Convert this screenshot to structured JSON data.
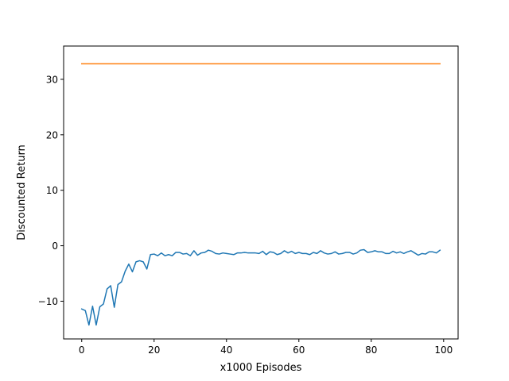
{
  "chart_data": {
    "type": "line",
    "title": "",
    "xlabel": "x1000 Episodes",
    "ylabel": "Discounted Return",
    "xlim": [
      -5,
      104
    ],
    "ylim": [
      -16.8,
      36.0
    ],
    "xticks": [
      0,
      20,
      40,
      60,
      80,
      100
    ],
    "yticks": [
      -10,
      0,
      10,
      20,
      30
    ],
    "tick_labels": {
      "x": [
        "0",
        "20",
        "40",
        "60",
        "80",
        "100"
      ],
      "y": [
        "−10",
        "0",
        "10",
        "20",
        "30"
      ]
    },
    "grid": false,
    "legend": "none",
    "series": [
      {
        "color": "#1f77b4",
        "x": [
          0,
          1,
          2,
          3,
          4,
          5,
          6,
          7,
          8,
          9,
          10,
          11,
          12,
          13,
          14,
          15,
          16,
          17,
          18,
          19,
          20,
          21,
          22,
          23,
          24,
          25,
          26,
          27,
          28,
          29,
          30,
          31,
          32,
          33,
          34,
          35,
          36,
          37,
          38,
          39,
          40,
          41,
          42,
          43,
          44,
          45,
          46,
          47,
          48,
          49,
          50,
          51,
          52,
          53,
          54,
          55,
          56,
          57,
          58,
          59,
          60,
          61,
          62,
          63,
          64,
          65,
          66,
          67,
          68,
          69,
          70,
          71,
          72,
          73,
          74,
          75,
          76,
          77,
          78,
          79,
          80,
          81,
          82,
          83,
          84,
          85,
          86,
          87,
          88,
          89,
          90,
          91,
          92,
          93,
          94,
          95,
          96,
          97,
          98,
          99
        ],
        "values": [
          -11.4,
          -11.7,
          -14.3,
          -10.9,
          -14.3,
          -11.0,
          -10.5,
          -7.8,
          -7.2,
          -11.1,
          -7.0,
          -6.5,
          -4.6,
          -3.3,
          -4.7,
          -2.9,
          -2.7,
          -2.9,
          -4.2,
          -1.6,
          -1.5,
          -1.8,
          -1.3,
          -1.8,
          -1.6,
          -1.8,
          -1.2,
          -1.2,
          -1.5,
          -1.4,
          -1.8,
          -0.9,
          -1.7,
          -1.3,
          -1.2,
          -0.8,
          -1.0,
          -1.4,
          -1.5,
          -1.3,
          -1.4,
          -1.5,
          -1.6,
          -1.3,
          -1.3,
          -1.2,
          -1.3,
          -1.3,
          -1.3,
          -1.4,
          -1.0,
          -1.6,
          -1.1,
          -1.2,
          -1.6,
          -1.4,
          -0.9,
          -1.3,
          -1.0,
          -1.4,
          -1.2,
          -1.4,
          -1.4,
          -1.6,
          -1.2,
          -1.4,
          -0.9,
          -1.3,
          -1.5,
          -1.4,
          -1.1,
          -1.5,
          -1.4,
          -1.2,
          -1.2,
          -1.5,
          -1.3,
          -0.8,
          -0.7,
          -1.2,
          -1.1,
          -0.9,
          -1.1,
          -1.1,
          -1.4,
          -1.4,
          -1.0,
          -1.3,
          -1.1,
          -1.4,
          -1.1,
          -0.9,
          -1.3,
          -1.7,
          -1.4,
          -1.5,
          -1.1,
          -1.1,
          -1.3,
          -0.8
        ]
      },
      {
        "color": "#ff7f0e",
        "x": [
          0,
          99
        ],
        "values": [
          32.8,
          32.8
        ]
      }
    ]
  }
}
